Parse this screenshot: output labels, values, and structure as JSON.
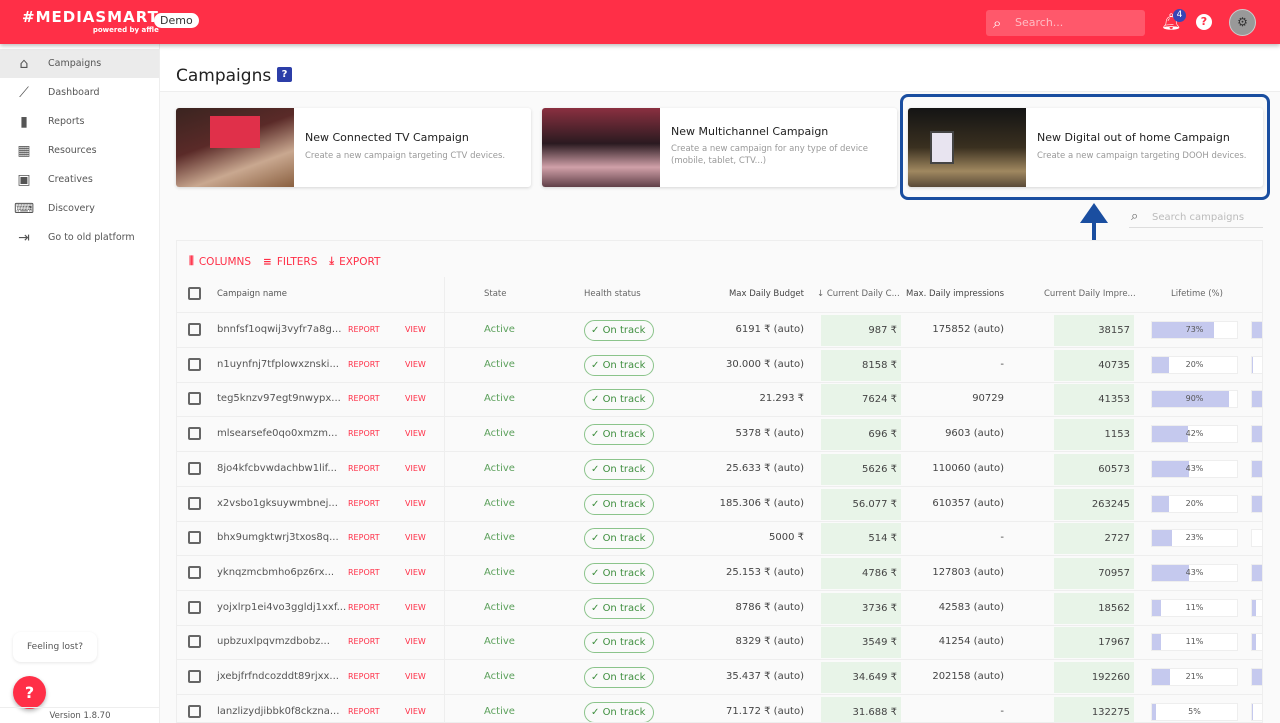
{
  "header": {
    "logo": "#MEDIASMART",
    "logo_sub": "powered by affle",
    "env_badge": "Demo",
    "search_placeholder": "Search...",
    "notifications_count": "4",
    "brand_color": "#ff2f47"
  },
  "sidebar": {
    "items": [
      {
        "label": "Campaigns",
        "icon": "home-icon",
        "active": true
      },
      {
        "label": "Dashboard",
        "icon": "trend-icon"
      },
      {
        "label": "Reports",
        "icon": "bar-chart-icon"
      },
      {
        "label": "Resources",
        "icon": "widgets-icon"
      },
      {
        "label": "Creatives",
        "icon": "image-icon"
      },
      {
        "label": "Discovery",
        "icon": "laptop-search-icon"
      },
      {
        "label": "Go to old platform",
        "icon": "exit-icon"
      }
    ],
    "help_text": "Feeling lost?",
    "version": "Version 1.8.70"
  },
  "page": {
    "title": "Campaigns"
  },
  "cards": [
    {
      "title": "New Connected TV Campaign",
      "desc": "Create a new campaign targeting CTV devices."
    },
    {
      "title": "New Multichannel Campaign",
      "desc": "Create a new campaign for any type of device (mobile, tablet, CTV...)"
    },
    {
      "title": "New Digital out of home Campaign",
      "desc": "Create a new campaign targeting DOOH devices.",
      "highlighted": true
    }
  ],
  "table": {
    "search_placeholder": "Search campaigns",
    "toolbar": {
      "columns": "COLUMNS",
      "filters": "FILTERS",
      "export": "EXPORT"
    },
    "headers": {
      "name": "Campaign name",
      "state": "State",
      "health": "Health status",
      "max_budget": "Max Daily Budget",
      "current_cost": "Current Daily C...",
      "max_impr": "Max. Daily impressions",
      "current_impr": "Current Daily Impre...",
      "lifetime": "Lifetime (%)"
    },
    "report_label": "REPORT",
    "view_label": "VIEW",
    "rows": [
      {
        "name": "bnnfsf1oqwij3vyfr7a8g...",
        "state": "Active",
        "health": "On track",
        "max_budget": "6191 ₹ (auto)",
        "current_cost": "987 ₹",
        "max_impr": "175852 (auto)",
        "current_impr": "38157",
        "lifetime": 73,
        "lifetime_label": "73%",
        "next_fill": 60
      },
      {
        "name": "n1uynfnj7tfplowxznski...",
        "state": "Active",
        "health": "On track",
        "max_budget": "30.000 ₹ (auto)",
        "current_cost": "8158 ₹",
        "max_impr": "-",
        "current_impr": "40735",
        "lifetime": 20,
        "lifetime_label": "20%",
        "next_fill": 4
      },
      {
        "name": "teg5knzv97egt9nwypx...",
        "state": "Active",
        "health": "On track",
        "max_budget": "21.293 ₹",
        "current_cost": "7624 ₹",
        "max_impr": "90729",
        "current_impr": "41353",
        "lifetime": 90,
        "lifetime_label": "90%",
        "next_fill": 60
      },
      {
        "name": "mlsearsefe0qo0xmzm...",
        "state": "Active",
        "health": "On track",
        "max_budget": "5378 ₹ (auto)",
        "current_cost": "696 ₹",
        "max_impr": "9603 (auto)",
        "current_impr": "1153",
        "lifetime": 42,
        "lifetime_label": "42%",
        "next_fill": 60
      },
      {
        "name": "8jo4kfcbvwdachbw1lif...",
        "state": "Active",
        "health": "On track",
        "max_budget": "25.633 ₹ (auto)",
        "current_cost": "5626 ₹",
        "max_impr": "110060 (auto)",
        "current_impr": "60573",
        "lifetime": 43,
        "lifetime_label": "43%",
        "next_fill": 60
      },
      {
        "name": "x2vsbo1gksuywmbnej...",
        "state": "Active",
        "health": "On track",
        "max_budget": "185.306 ₹ (auto)",
        "current_cost": "56.077 ₹",
        "max_impr": "610357 (auto)",
        "current_impr": "263245",
        "lifetime": 20,
        "lifetime_label": "20%",
        "next_fill": 60
      },
      {
        "name": "bhx9umgktwrj3txos8q...",
        "state": "Active",
        "health": "On track",
        "max_budget": "5000 ₹",
        "current_cost": "514 ₹",
        "max_impr": "-",
        "current_impr": "2727",
        "lifetime": 23,
        "lifetime_label": "23%",
        "next_fill": 0
      },
      {
        "name": "yknqzmcbmho6pz6rx...",
        "state": "Active",
        "health": "On track",
        "max_budget": "25.153 ₹ (auto)",
        "current_cost": "4786 ₹",
        "max_impr": "127803 (auto)",
        "current_impr": "70957",
        "lifetime": 43,
        "lifetime_label": "43%",
        "next_fill": 60
      },
      {
        "name": "yojxlrp1ei4vo3ggldj1xxf...",
        "state": "Active",
        "health": "On track",
        "max_budget": "8786 ₹ (auto)",
        "current_cost": "3736 ₹",
        "max_impr": "42583 (auto)",
        "current_impr": "18562",
        "lifetime": 11,
        "lifetime_label": "11%",
        "next_fill": 10
      },
      {
        "name": "upbzuxlpqvmzdbobz...",
        "state": "Active",
        "health": "On track",
        "max_budget": "8329 ₹ (auto)",
        "current_cost": "3549 ₹",
        "max_impr": "41254 (auto)",
        "current_impr": "17967",
        "lifetime": 11,
        "lifetime_label": "11%",
        "next_fill": 10
      },
      {
        "name": "jxebjfrfndcozddt89rjxx...",
        "state": "Active",
        "health": "On track",
        "max_budget": "35.437 ₹ (auto)",
        "current_cost": "34.649 ₹",
        "max_impr": "202158 (auto)",
        "current_impr": "192260",
        "lifetime": 21,
        "lifetime_label": "21%",
        "next_fill": 60
      },
      {
        "name": "lanzlizydjibbk0f8ckzna...",
        "state": "Active",
        "health": "On track",
        "max_budget": "71.172 ₹ (auto)",
        "current_cost": "31.688 ₹",
        "max_impr": "-",
        "current_impr": "132275",
        "lifetime": 5,
        "lifetime_label": "5%",
        "next_fill": 2
      }
    ]
  }
}
